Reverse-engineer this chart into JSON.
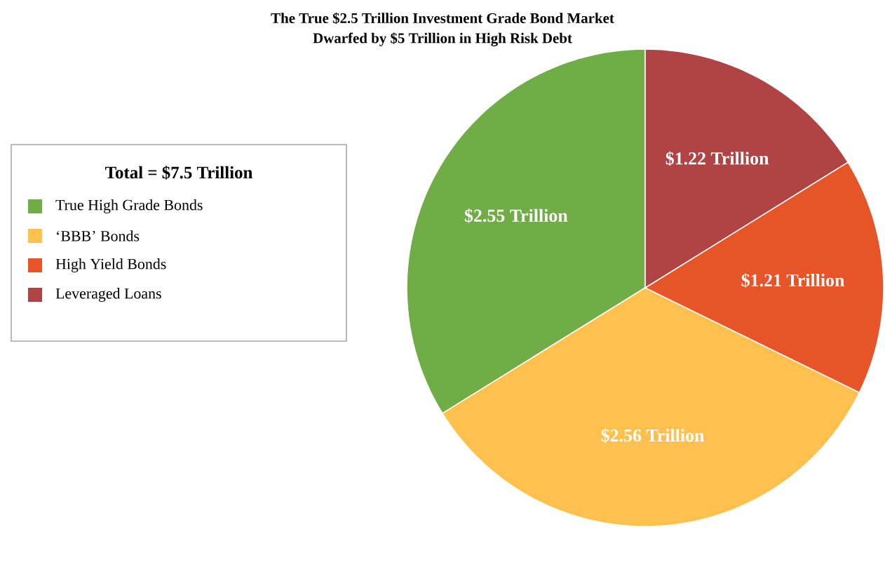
{
  "chart_data": {
    "type": "pie",
    "title": "The True $2.5 Trillion Investment Grade Bond Market",
    "subtitle": "Dwarfed by $5 Trillion in High Risk Debt",
    "legend_title": "Total = $7.5 Trillion",
    "legend": "left",
    "categories": [
      "True High Grade Bonds",
      "‘BBB’ Bonds",
      "High Yield Bonds",
      "Leveraged Loans"
    ],
    "values": [
      2.55,
      2.56,
      1.21,
      1.22
    ],
    "colors": [
      "#70ad47",
      "#ffc04c",
      "#e65427",
      "#b04444"
    ],
    "value_labels": [
      "$2.55 Trillion",
      "$2.56 Trillion",
      "$1.21 Trillion",
      "$1.22 Trillion"
    ]
  }
}
